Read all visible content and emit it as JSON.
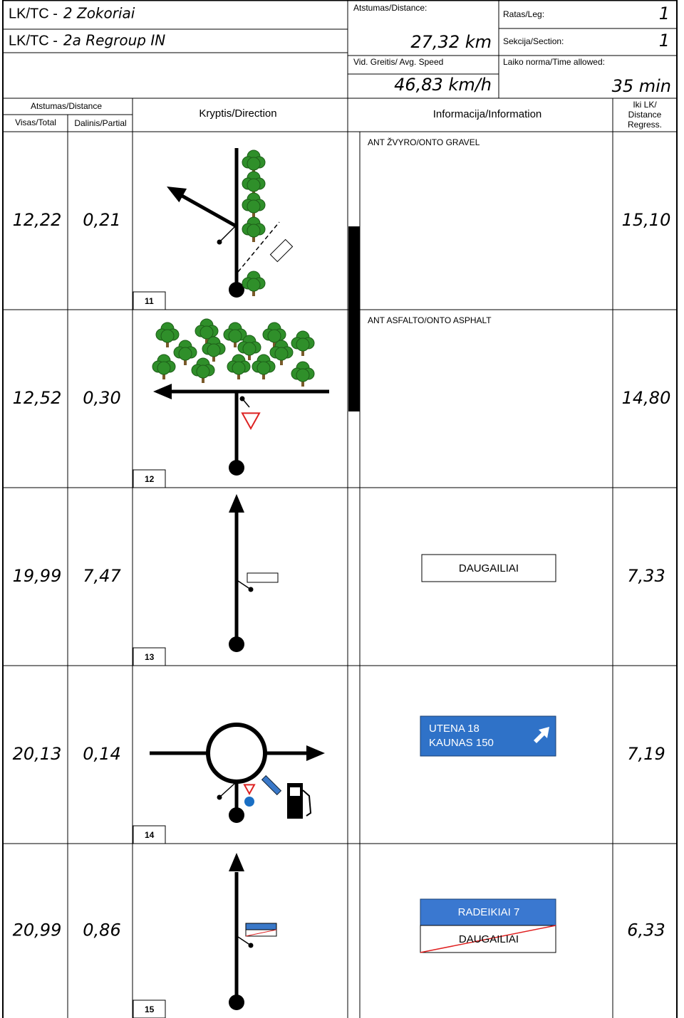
{
  "header": {
    "rows": [
      {
        "label": "LK/TC -",
        "name": "2 Zokoriai"
      },
      {
        "label": "LK/TC -",
        "name": "2a Regroup IN"
      }
    ],
    "distance_label": "Atstumas/Distance:",
    "distance": "27,32 km",
    "leg_label": "Ratas/Leg:",
    "leg": "1",
    "section_label": "Sekcija/Section:",
    "section": "1",
    "speed_label": "Vid. Greitis/ Avg. Speed",
    "speed": "46,83 km/h",
    "time_label": "Laiko norma/Time allowed:",
    "time": "35 min"
  },
  "columns": {
    "distance": "Atstumas/Distance",
    "total": "Visas/Total",
    "partial": "Dalinis/Partial",
    "direction": "Kryptis/Direction",
    "information": "Informacija/Information",
    "regress": [
      "Iki LK/",
      "Distance",
      "Regress."
    ]
  },
  "entries": [
    {
      "number": "11",
      "total": "12,22",
      "partial": "0,21",
      "regress": "15,10",
      "info": "ANT ŽVYRO/ONTO GRAVEL"
    },
    {
      "number": "12",
      "total": "12,52",
      "partial": "0,30",
      "regress": "14,80",
      "info": "ANT ASFALTO/ONTO ASPHALT"
    },
    {
      "number": "13",
      "total": "19,99",
      "partial": "7,47",
      "regress": "7,33",
      "sign": [
        "DAUGAILIAI"
      ]
    },
    {
      "number": "14",
      "total": "20,13",
      "partial": "0,14",
      "regress": "7,19",
      "sign": [
        "UTENA 18",
        "KAUNAS 150"
      ]
    },
    {
      "number": "15",
      "total": "20,99",
      "partial": "0,86",
      "regress": "6,33",
      "sign": [
        "RADEIKIAI 7",
        "DAUGAILIAI"
      ]
    }
  ]
}
